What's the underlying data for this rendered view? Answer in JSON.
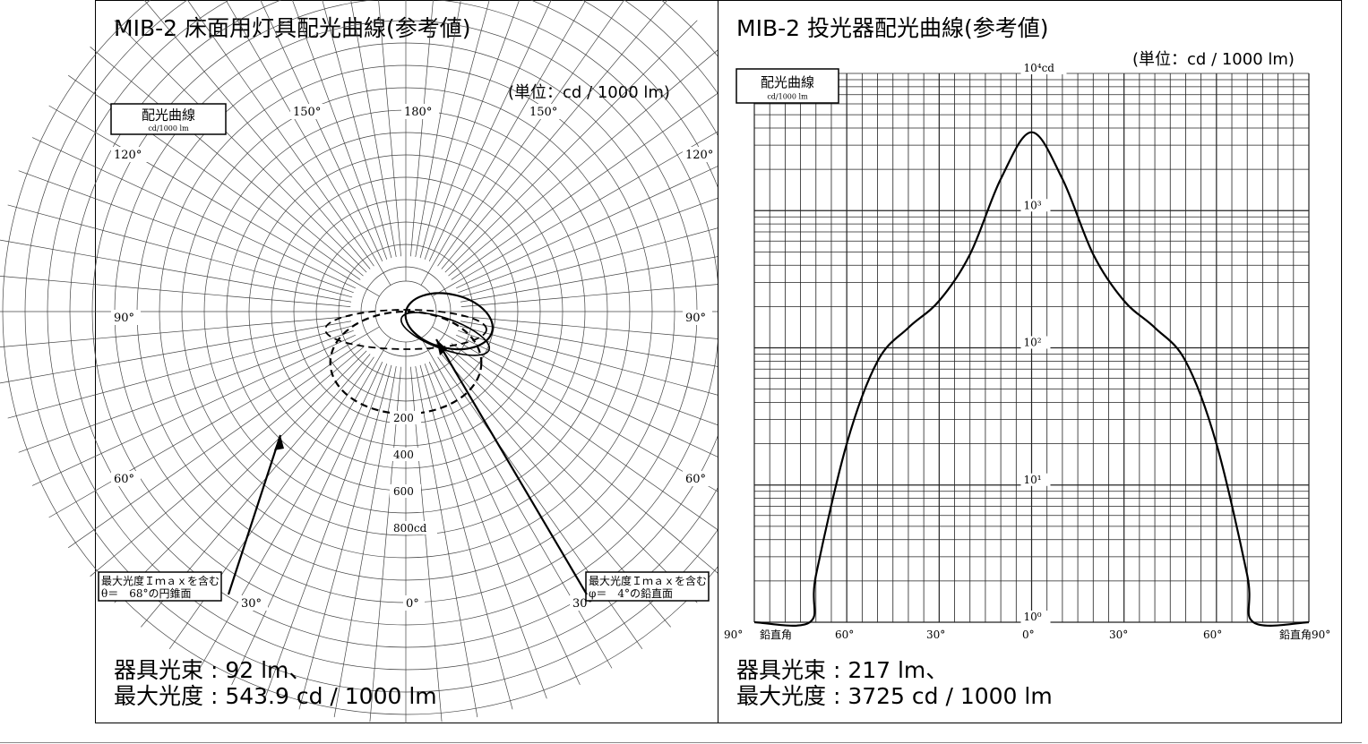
{
  "left_panel": {
    "title": "MIB-2 床面用灯具配光曲線(参考値)",
    "unit_label": "(単位：cd / 1000 lm)",
    "stats": [
      "器具光束 : 92 lm、",
      "最大光度 : 543.9 cd / 1000 lm"
    ]
  },
  "right_panel": {
    "title": "MIB-2 投光器配光曲線(参考値)",
    "unit_label": "(単位：cd / 1000 lm)",
    "stats": [
      "器具光束 : 217 lm、",
      "最大光度 : 3725 cd / 1000 lm"
    ]
  },
  "chart_data": [
    {
      "type": "polar",
      "legend_title": "配光曲線",
      "legend_sub": "cd/1000 lm",
      "angle_labels": [
        "150°",
        "180°",
        "150°",
        "120°",
        "120°",
        "90°",
        "90°",
        "60°",
        "60°",
        "30°",
        "0°",
        "30°"
      ],
      "radial_tick_labels": [
        "200",
        "400",
        "600",
        "800cd"
      ],
      "radial_ticks": [
        200,
        400,
        600,
        800
      ],
      "rmax": 800,
      "callouts": [
        {
          "lines": [
            "最大光度Ｉｍａｘを含む",
            "θ＝　68°の円錐面"
          ]
        },
        {
          "lines": [
            "最大光度Ｉｍａｘを含む",
            "φ＝　4°の鉛直面"
          ]
        }
      ],
      "series": [
        {
          "name": "θ＝68°の円錐面",
          "style": "dashed",
          "angles": [
            -90,
            -80,
            -70,
            -60,
            -50,
            -40,
            -30,
            -20,
            -10,
            0,
            10,
            20,
            30,
            40,
            50,
            60,
            70,
            80,
            90
          ],
          "values": [
            0,
            45,
            115,
            215,
            330,
            440,
            515,
            544,
            530,
            470,
            380,
            290,
            210,
            150,
            110,
            80,
            55,
            25,
            0
          ]
        },
        {
          "name": "φ＝4°の鉛直面",
          "style": "solid",
          "angles": [
            -90,
            -75,
            -60,
            -45,
            -30,
            -15,
            0,
            15,
            30,
            45,
            60,
            75,
            90
          ],
          "values": [
            0,
            30,
            60,
            80,
            110,
            160,
            230,
            320,
            430,
            420,
            260,
            110,
            0
          ]
        }
      ]
    },
    {
      "type": "line",
      "yscale": "log",
      "legend_title": "配光曲線",
      "legend_sub": "cd/1000 lm",
      "ylim": [
        1,
        10000
      ],
      "y_tick_labels": [
        "10⁴cd",
        "10³",
        "10²",
        "10¹",
        "10⁰"
      ],
      "x_tick_labels": [
        "90°",
        "鉛直角",
        "60°",
        "30°",
        "0°",
        "30°",
        "60°",
        "鉛直角90°"
      ],
      "x": [
        -90,
        -72,
        -70,
        -60,
        -50,
        -40,
        -30,
        -20,
        -10,
        0,
        10,
        20,
        30,
        40,
        50,
        60,
        70,
        72,
        90
      ],
      "series": [
        {
          "values": [
            1,
            1,
            2.2,
            20,
            80,
            140,
            220,
            480,
            1700,
            3725,
            1700,
            480,
            220,
            140,
            80,
            20,
            2.2,
            1,
            1
          ]
        }
      ]
    }
  ]
}
